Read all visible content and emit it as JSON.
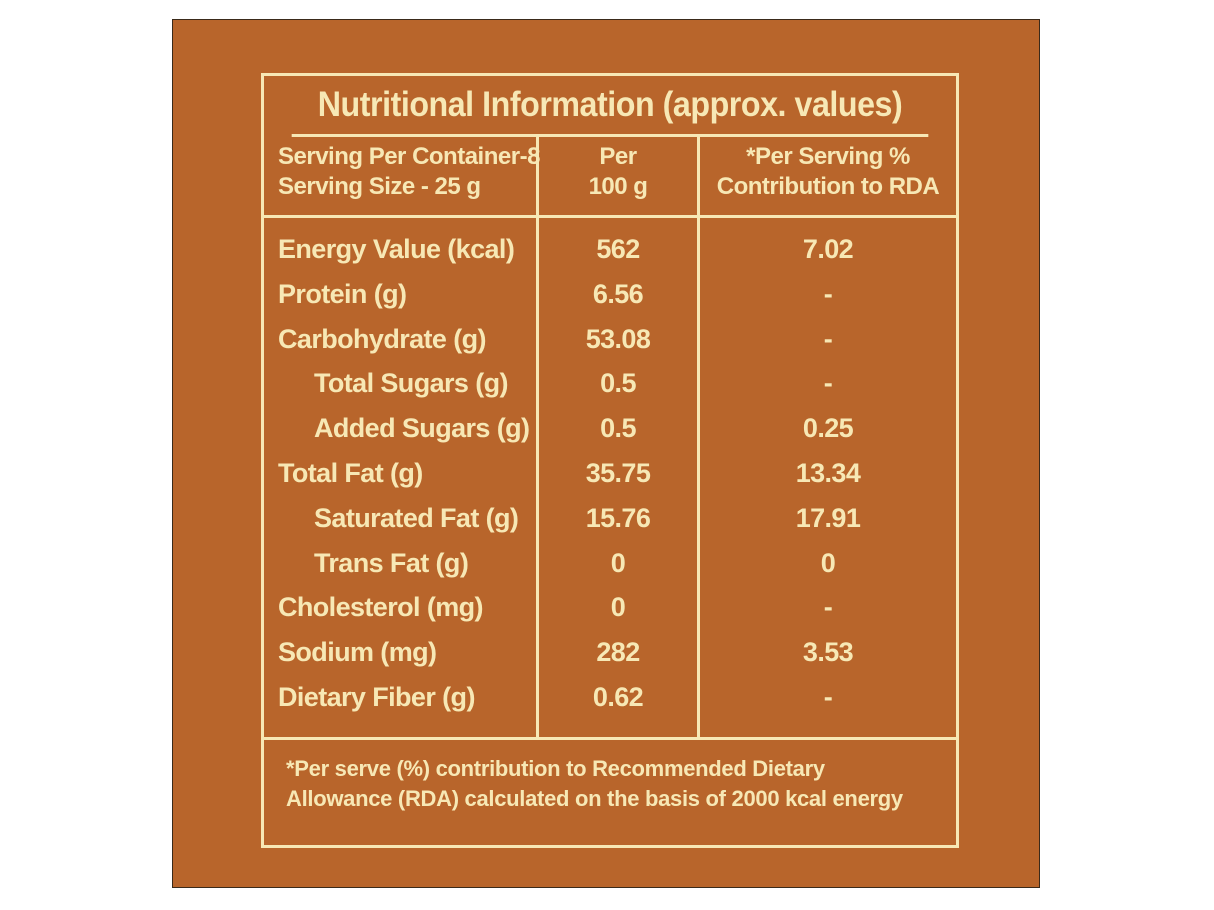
{
  "title": "Nutritional Information (approx. values)",
  "header": {
    "col1_line1": "Serving Per Container-8",
    "col1_line2": "Serving Size - 25 g",
    "col2_line1": "Per",
    "col2_line2": "100 g",
    "col3_line1": "*Per Serving %",
    "col3_line2": "Contribution to RDA"
  },
  "rows": [
    {
      "name": "Energy Value (kcal)",
      "per100": "562",
      "rda": "7.02"
    },
    {
      "name": "Protein (g)",
      "per100": "6.56",
      "rda": "-"
    },
    {
      "name": "Carbohydrate (g)",
      "per100": "53.08",
      "rda": "-"
    },
    {
      "name": "Total Sugars (g)",
      "per100": "0.5",
      "rda": "-"
    },
    {
      "name": "Added Sugars (g)",
      "per100": "0.5",
      "rda": "0.25"
    },
    {
      "name": "Total Fat (g)",
      "per100": "35.75",
      "rda": "13.34"
    },
    {
      "name": "Saturated Fat (g)",
      "per100": "15.76",
      "rda": "17.91"
    },
    {
      "name": "Trans Fat (g)",
      "per100": "0",
      "rda": "0"
    },
    {
      "name": "Cholesterol (mg)",
      "per100": "0",
      "rda": "-"
    },
    {
      "name": "Sodium (mg)",
      "per100": "282",
      "rda": "3.53"
    },
    {
      "name": "Dietary Fiber (g)",
      "per100": "0.62",
      "rda": "-"
    }
  ],
  "footer": {
    "line1": "*Per serve (%) contribution to Recommended Dietary",
    "line2": "Allowance (RDA) calculated on the basis of 2000 kcal energy"
  },
  "colors": {
    "background": "#b8652b",
    "text": "#f7e8b5"
  }
}
